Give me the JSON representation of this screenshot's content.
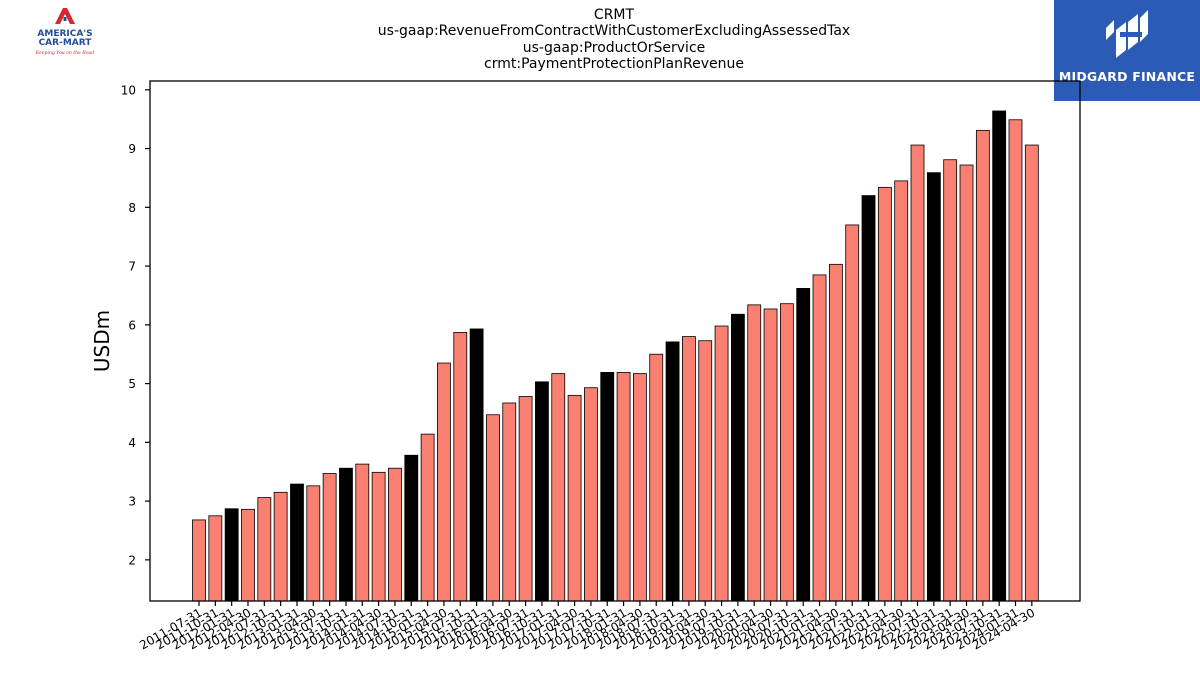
{
  "header": {
    "title_lines": [
      "CRMT",
      "us-gaap:RevenueFromContractWithCustomerExcludingAssessedTax",
      "us-gaap:ProductOrService",
      "crmt:PaymentProtectionPlanRevenue"
    ]
  },
  "logos": {
    "left_name_line1": "AMERICA'S",
    "left_name_line2": "CAR-MART",
    "left_tagline": "Keeping You on the Road",
    "right_name": "MIDGARD FINANCE"
  },
  "colors": {
    "bar_regular": "#fa8072",
    "bar_highlight": "#000000",
    "edge": "#000000",
    "right_logo_bg": "#2c5bb5",
    "left_logo_red": "#d7262c",
    "left_logo_blue": "#1f4f9a"
  },
  "chart_data": {
    "type": "bar",
    "ylabel": "USDm",
    "ylim": [
      1.3,
      10.15
    ],
    "yticks": [
      2,
      3,
      4,
      5,
      6,
      7,
      8,
      9,
      10
    ],
    "categories": [
      "2011-07-31",
      "2011-10-31",
      "2012-01-31",
      "2012-04-30",
      "2012-07-31",
      "2012-10-31",
      "2013-01-31",
      "2013-04-30",
      "2013-07-31",
      "2013-10-31",
      "2014-01-31",
      "2014-04-30",
      "2014-07-31",
      "2014-10-31",
      "2015-01-31",
      "2015-04-30",
      "2015-07-31",
      "2015-10-31",
      "2016-01-31",
      "2016-04-30",
      "2016-07-31",
      "2016-10-31",
      "2017-01-31",
      "2017-04-30",
      "2017-07-31",
      "2017-10-31",
      "2018-01-31",
      "2018-04-30",
      "2018-07-31",
      "2018-10-31",
      "2019-01-31",
      "2019-04-30",
      "2019-07-31",
      "2019-10-31",
      "2020-01-31",
      "2020-04-30",
      "2020-07-31",
      "2020-10-31",
      "2021-01-31",
      "2021-04-30",
      "2021-07-31",
      "2021-10-31",
      "2022-01-31",
      "2022-04-30",
      "2022-07-31",
      "2022-10-31",
      "2023-01-31",
      "2023-04-30",
      "2023-07-31",
      "2023-10-31",
      "2024-01-31",
      "2024-04-30"
    ],
    "values": [
      2.68,
      2.75,
      2.87,
      2.86,
      3.06,
      3.15,
      3.29,
      3.26,
      3.47,
      3.56,
      3.63,
      3.49,
      3.56,
      3.78,
      4.14,
      5.35,
      5.87,
      5.93,
      4.47,
      4.67,
      4.78,
      5.03,
      5.17,
      4.8,
      4.93,
      5.19,
      5.19,
      5.17,
      5.5,
      5.71,
      5.8,
      5.73,
      5.98,
      6.18,
      6.34,
      6.27,
      6.36,
      6.62,
      6.85,
      7.03,
      7.7,
      8.2,
      8.34,
      8.45,
      9.06,
      8.59,
      8.81,
      8.72,
      9.31,
      9.64,
      9.49,
      9.06
    ],
    "highlighted": [
      false,
      false,
      true,
      false,
      false,
      false,
      true,
      false,
      false,
      true,
      false,
      false,
      false,
      true,
      false,
      false,
      false,
      true,
      false,
      false,
      false,
      true,
      false,
      false,
      false,
      true,
      false,
      false,
      false,
      true,
      false,
      false,
      false,
      true,
      false,
      false,
      false,
      true,
      false,
      false,
      false,
      true,
      false,
      false,
      false,
      true,
      false,
      false,
      false,
      true,
      false,
      false
    ]
  }
}
